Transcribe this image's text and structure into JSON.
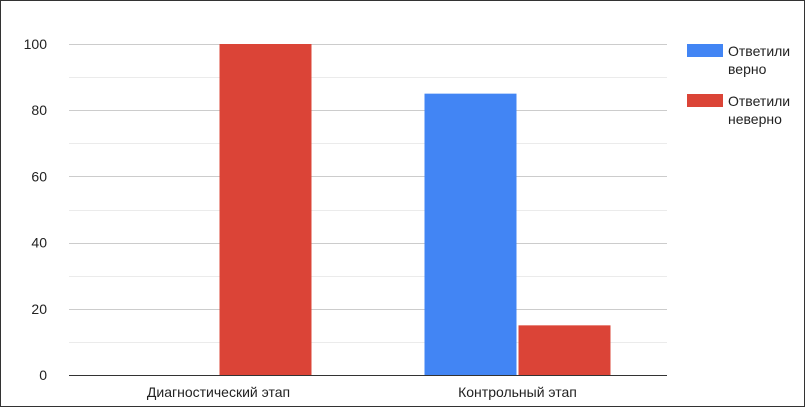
{
  "chart_data": {
    "type": "bar",
    "categories": [
      "Диагностический этап",
      "Контрольный этап"
    ],
    "series": [
      {
        "name": "Ответили верно",
        "legend_lines": [
          "Ответили",
          "верно"
        ],
        "values": [
          0,
          85
        ],
        "color": "#4285f4"
      },
      {
        "name": "Ответили неверно",
        "legend_lines": [
          "Ответили",
          "неверно"
        ],
        "values": [
          100,
          15
        ],
        "color": "#db4437"
      }
    ],
    "ylim": [
      0,
      100
    ],
    "yticks": [
      0,
      20,
      40,
      60,
      80,
      100
    ],
    "grid": true,
    "legend_position": "right"
  }
}
